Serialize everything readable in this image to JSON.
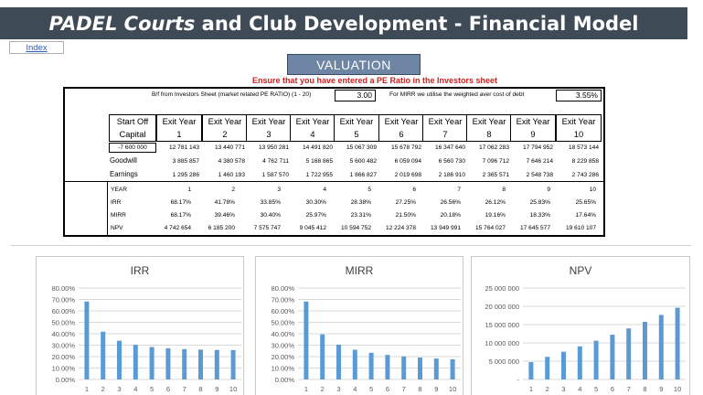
{
  "header": {
    "title_italic": "PADEL Courts",
    "title_rest": " and Club Development - Financial Model",
    "index_link": "Index"
  },
  "valuation": {
    "button_label": "VALUATION",
    "warning": "Ensure that you have entered a PE Ratio in the Investors sheet",
    "pe_label": "B/f from Investors Sheet (market related PE RATIO) (1 - 20)",
    "pe_value": "3.00",
    "mirr_label": "For MIRR we utilise the weighted aver cost of debt",
    "mirr_value": "3.55%"
  },
  "table": {
    "start_header": [
      "Start Off",
      "Capital"
    ],
    "year_headers": [
      [
        "Exit Year",
        "1"
      ],
      [
        "Exit Year",
        "2"
      ],
      [
        "Exit Year",
        "3"
      ],
      [
        "Exit Year",
        "4"
      ],
      [
        "Exit Year",
        "5"
      ],
      [
        "Exit Year",
        "6"
      ],
      [
        "Exit Year",
        "7"
      ],
      [
        "Exit Year",
        "8"
      ],
      [
        "Exit Year",
        "9"
      ],
      [
        "Exit Year",
        "10"
      ]
    ],
    "start_capital": "-7 600 000",
    "value_row": [
      "12 781 143",
      "13 440 771",
      "13 950 281",
      "14 491 820",
      "15 067 309",
      "15 678 792",
      "16 347 640",
      "17 062 283",
      "17 794 952",
      "18 573 144"
    ],
    "goodwill_label": "Goodwill",
    "goodwill_row": [
      "3 885 857",
      "4 380 578",
      "4 762 711",
      "5 168 865",
      "5 600 482",
      "6 059 094",
      "6 560 730",
      "7 096 712",
      "7 646 214",
      "8 229 858"
    ],
    "earnings_label": "Earnings",
    "earnings_row": [
      "1 295 286",
      "1 460 193",
      "1 587 570",
      "1 722 955",
      "1 866 827",
      "2 019 698",
      "2 186 910",
      "2 365 571",
      "2 548 738",
      "2 743 286"
    ],
    "year_label": "YEAR",
    "year_row": [
      "1",
      "2",
      "3",
      "4",
      "5",
      "6",
      "7",
      "8",
      "9",
      "10"
    ],
    "irr_label": "IRR",
    "irr_row": [
      "68.17%",
      "41.78%",
      "33.85%",
      "30.30%",
      "28.38%",
      "27.25%",
      "26.56%",
      "26.12%",
      "25.83%",
      "25.65%"
    ],
    "mirr_label": "MIRR",
    "mirr_row": [
      "68.17%",
      "39.46%",
      "30.40%",
      "25.97%",
      "23.31%",
      "21.50%",
      "20.18%",
      "19.16%",
      "18.33%",
      "17.64%"
    ],
    "npv_label": "NPV",
    "npv_row": [
      "4 742 654",
      "6 185 200",
      "7 575 747",
      "9 045 412",
      "10 594 752",
      "12 224 378",
      "13 949 991",
      "15 764 027",
      "17 645 577",
      "19 610 107"
    ]
  },
  "colors": {
    "title_bg": "#3f4a57",
    "valuation_bg": "#6f85a4",
    "warning": "#cc1f1f",
    "bar": "#5b9bd5"
  },
  "chart_data": [
    {
      "type": "bar",
      "title": "IRR",
      "categories": [
        "1",
        "2",
        "3",
        "4",
        "5",
        "6",
        "7",
        "8",
        "9",
        "10"
      ],
      "values": [
        68.17,
        41.78,
        33.85,
        30.3,
        28.38,
        27.25,
        26.56,
        26.12,
        25.83,
        25.65
      ],
      "ylim": [
        0,
        80
      ],
      "yticks": [
        "0.00%",
        "10.00%",
        "20.00%",
        "30.00%",
        "40.00%",
        "50.00%",
        "60.00%",
        "70.00%",
        "80.00%"
      ],
      "grid": true
    },
    {
      "type": "bar",
      "title": "MIRR",
      "categories": [
        "1",
        "2",
        "3",
        "4",
        "5",
        "6",
        "7",
        "8",
        "9",
        "10"
      ],
      "values": [
        68.17,
        39.46,
        30.4,
        25.97,
        23.31,
        21.5,
        20.18,
        19.16,
        18.33,
        17.64
      ],
      "ylim": [
        0,
        80
      ],
      "yticks": [
        "0.00%",
        "10.00%",
        "20.00%",
        "30.00%",
        "40.00%",
        "50.00%",
        "60.00%",
        "70.00%",
        "80.00%"
      ],
      "grid": true
    },
    {
      "type": "bar",
      "title": "NPV",
      "categories": [
        "1",
        "2",
        "3",
        "4",
        "5",
        "6",
        "7",
        "8",
        "9",
        "10"
      ],
      "values": [
        4742654,
        6185200,
        7575747,
        9045412,
        10594752,
        12224378,
        13949991,
        15764027,
        17645577,
        19610107
      ],
      "ylim": [
        0,
        25000000
      ],
      "yticks": [
        "-",
        "5 000 000",
        "10 000 000",
        "15 000 000",
        "20 000 000",
        "25 000 000"
      ],
      "grid": true
    }
  ]
}
